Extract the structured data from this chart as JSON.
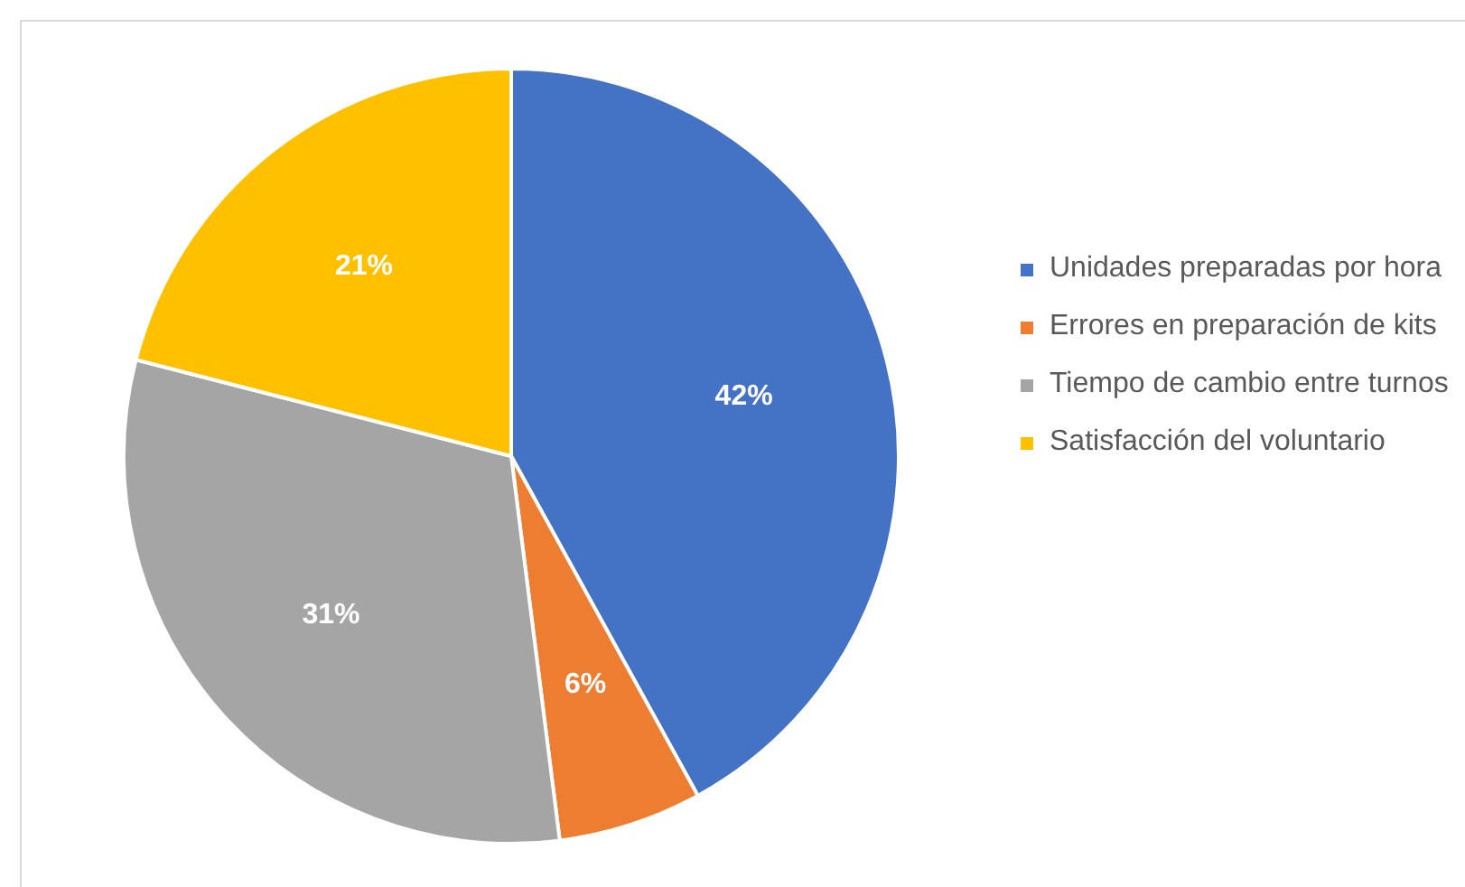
{
  "chart_data": {
    "type": "pie",
    "categories": [
      "Unidades preparadas por hora",
      "Errores en preparación de kits",
      "Tiempo de cambio entre turnos",
      "Satisfacción del voluntario"
    ],
    "values": [
      42,
      6,
      31,
      21
    ],
    "colors": [
      "#4472c4",
      "#ed7d31",
      "#a5a5a5",
      "#ffc000"
    ],
    "value_labels": [
      "42%",
      "6%",
      "31%",
      "21%"
    ],
    "legend": "right"
  }
}
